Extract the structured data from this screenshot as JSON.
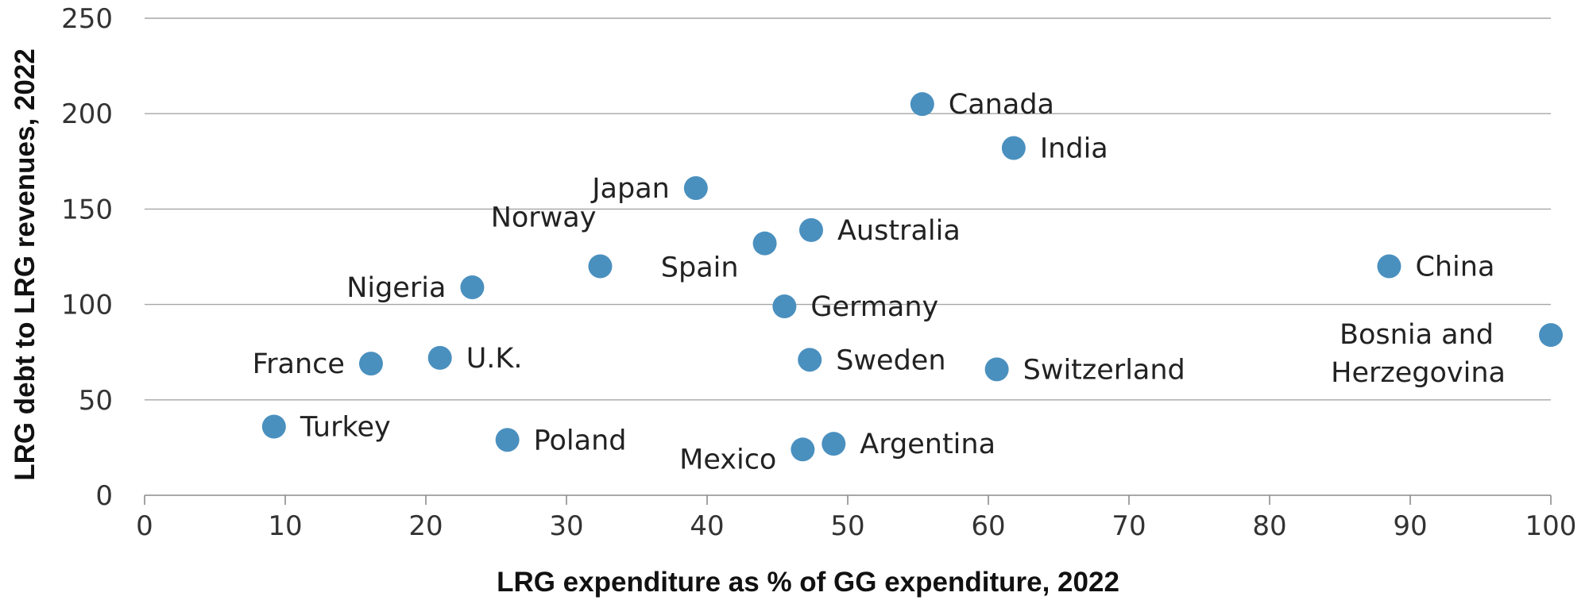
{
  "chart_data": {
    "type": "scatter",
    "title": "",
    "xlabel": "LRG expenditure as % of GG expenditure, 2022",
    "ylabel": "LRG debt to LRG revenues, 2022",
    "xlim": [
      0,
      100
    ],
    "ylim": [
      0,
      250
    ],
    "x_ticks": [
      "0",
      "10",
      "20",
      "30",
      "40",
      "50",
      "60",
      "70",
      "80",
      "90",
      "100"
    ],
    "y_ticks": [
      "0",
      "50",
      "100",
      "150",
      "200",
      "250"
    ],
    "grid": "horizontal",
    "legend": "none",
    "marker_color": "#4a90bf",
    "points": [
      {
        "label": "Canada",
        "x": 55.3,
        "y": 205
      },
      {
        "label": "India",
        "x": 61.8,
        "y": 182
      },
      {
        "label": "Japan",
        "x": 39.2,
        "y": 161
      },
      {
        "label": "Australia",
        "x": 47.4,
        "y": 139
      },
      {
        "label": "Spain",
        "x": 44.1,
        "y": 132
      },
      {
        "label": "Norway",
        "x": 32.4,
        "y": 120
      },
      {
        "label": "China",
        "x": 88.5,
        "y": 120
      },
      {
        "label": "Nigeria",
        "x": 23.3,
        "y": 109
      },
      {
        "label": "Germany",
        "x": 45.5,
        "y": 99
      },
      {
        "label": "Bosnia and Herzegovina",
        "label_lines": [
          "Bosnia and",
          "Herzegovina"
        ],
        "x": 100,
        "y": 84
      },
      {
        "label": "U.K.",
        "x": 21.0,
        "y": 72
      },
      {
        "label": "Sweden",
        "x": 47.3,
        "y": 71
      },
      {
        "label": "France",
        "x": 16.1,
        "y": 69
      },
      {
        "label": "Switzerland",
        "x": 60.6,
        "y": 66
      },
      {
        "label": "Turkey",
        "x": 9.2,
        "y": 36
      },
      {
        "label": "Poland",
        "x": 25.8,
        "y": 29
      },
      {
        "label": "Argentina",
        "x": 49.0,
        "y": 27
      },
      {
        "label": "Mexico",
        "x": 46.8,
        "y": 24
      }
    ]
  }
}
